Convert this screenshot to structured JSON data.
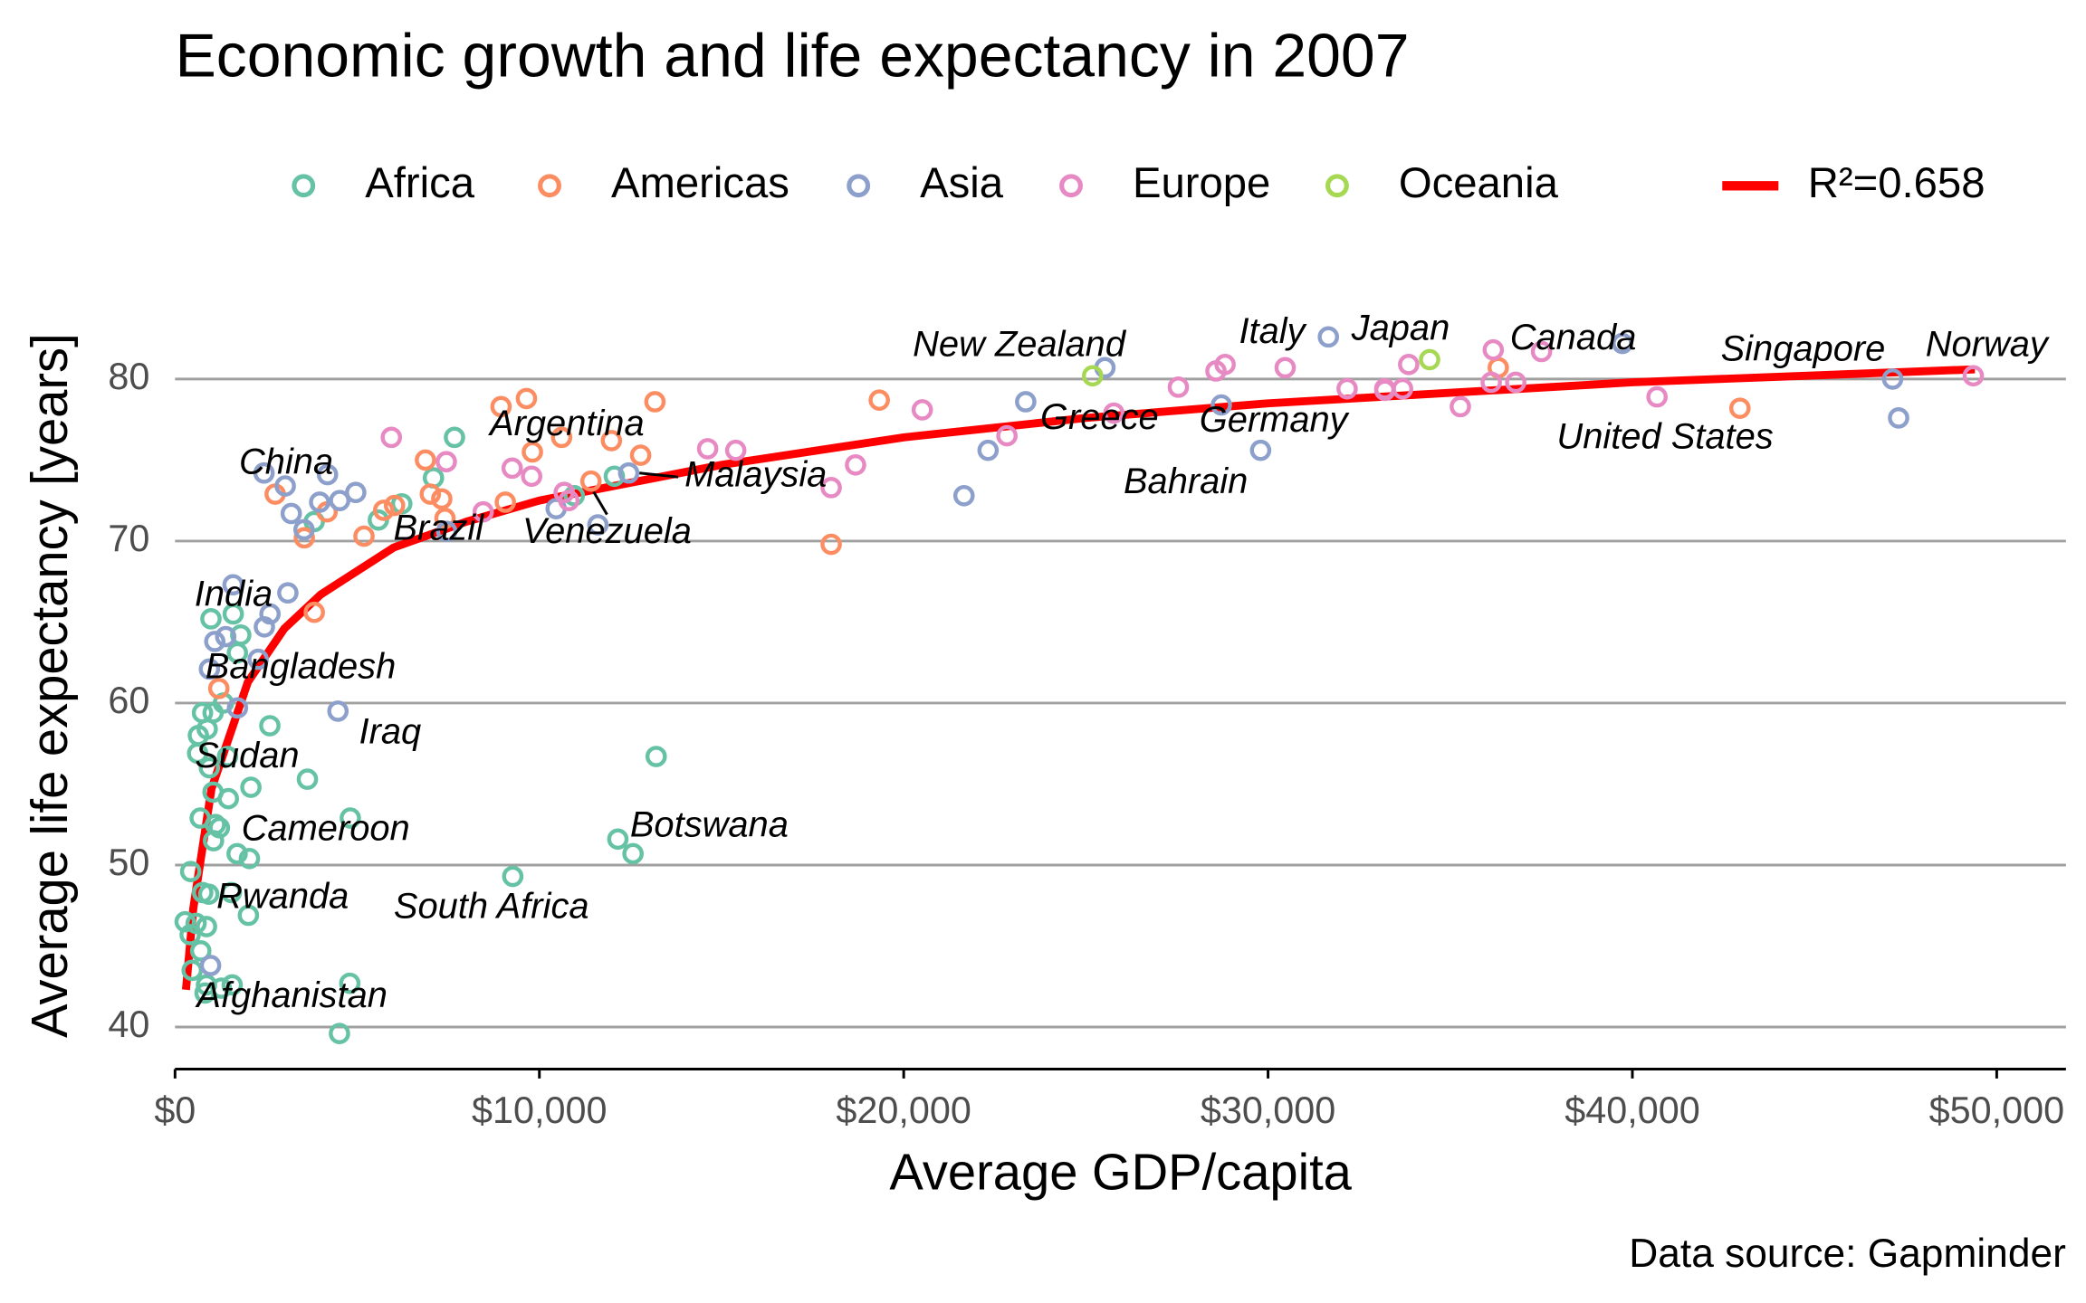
{
  "chart_data": {
    "type": "scatter",
    "title": "Economic growth and life expectancy in 2007",
    "x_label": "Average GDP/capita",
    "y_label": "Average life expectancy [years]",
    "caption": "Data source: Gapminder",
    "xlim": [
      -400,
      51900
    ],
    "ylim": [
      37.4,
      86.9
    ],
    "xticks": [
      {
        "value": 0,
        "label": "$0"
      },
      {
        "value": 10000,
        "label": "$10,000"
      },
      {
        "value": 20000,
        "label": "$20,000"
      },
      {
        "value": 30000,
        "label": "$30,000"
      },
      {
        "value": 40000,
        "label": "$40,000"
      },
      {
        "value": 50000,
        "label": "$50,000"
      }
    ],
    "yticks": [
      40,
      50,
      60,
      70,
      80
    ],
    "grid": true,
    "legend": "top",
    "series": [
      {
        "name": "Africa",
        "color": "#66c2a5",
        "x": [
          6223,
          4797,
          1441,
          12570,
          1217,
          430,
          2042,
          706,
          1704,
          986,
          278,
          3633,
          1545,
          2082,
          5581,
          12154,
          641,
          691,
          13206,
          753,
          1328,
          943,
          579,
          1463,
          1569,
          415,
          12057,
          1045,
          759,
          1043,
          1803,
          10957,
          3820,
          824,
          4811,
          620,
          2014,
          7670,
          863,
          1598,
          1712,
          863,
          926,
          9270,
          2602,
          4513,
          1107,
          883,
          7093,
          1056,
          1271,
          470
        ],
        "y": [
          72.3,
          42.7,
          56.7,
          50.7,
          52.3,
          49.6,
          50.4,
          44.7,
          50.7,
          65.2,
          46.5,
          55.3,
          48.3,
          54.8,
          71.3,
          51.6,
          58.0,
          52.9,
          56.7,
          59.4,
          60.0,
          56.0,
          46.4,
          54.1,
          42.6,
          45.7,
          74.0,
          59.4,
          48.3,
          54.5,
          64.2,
          72.8,
          71.2,
          42.1,
          52.9,
          56.9,
          46.9,
          76.4,
          46.2,
          65.5,
          63.1,
          42.6,
          48.2,
          49.3,
          58.6,
          39.6,
          52.5,
          58.4,
          73.9,
          51.5,
          42.4,
          43.5
        ]
      },
      {
        "name": "Americas",
        "color": "#fc8d62",
        "x": [
          12779,
          3822,
          9066,
          36319,
          13172,
          7007,
          9645,
          8948,
          6025,
          6873,
          5728,
          5186,
          1202,
          3548,
          7321,
          11978,
          2749,
          9809,
          4173,
          7409,
          19329,
          18009,
          42952,
          10611,
          11416
        ],
        "y": [
          75.3,
          65.6,
          72.4,
          80.7,
          78.6,
          72.9,
          78.8,
          78.3,
          72.2,
          75.0,
          71.9,
          70.3,
          60.9,
          70.2,
          72.6,
          76.2,
          72.9,
          75.5,
          71.8,
          71.4,
          78.7,
          69.8,
          78.2,
          76.4,
          73.7
        ]
      },
      {
        "name": "Asia",
        "color": "#8da0cb",
        "x": [
          975,
          29796,
          1391,
          1714,
          4959,
          39725,
          2452,
          3541,
          11606,
          4471,
          25523,
          31656,
          4519,
          1593,
          23348,
          47307,
          10461,
          12452,
          3096,
          944,
          1091,
          22316,
          2606,
          3190,
          21655,
          47143,
          3970,
          4185,
          28718,
          7458,
          2442,
          3025,
          2281
        ],
        "y": [
          43.8,
          75.6,
          64.1,
          59.7,
          73.0,
          82.2,
          64.7,
          70.7,
          71.0,
          59.5,
          80.7,
          82.6,
          72.5,
          67.3,
          78.6,
          77.6,
          72.0,
          74.2,
          66.8,
          62.1,
          63.8,
          75.6,
          65.5,
          71.7,
          72.8,
          80.0,
          72.4,
          74.1,
          78.4,
          70.6,
          74.2,
          73.4,
          62.7
        ]
      },
      {
        "name": "Europe",
        "color": "#e78ac3",
        "x": [
          5937,
          36126,
          33693,
          7446,
          10681,
          14619,
          22833,
          35278,
          33207,
          30470,
          32170,
          27538,
          18009,
          36181,
          40676,
          28570,
          9254,
          36798,
          49357,
          15390,
          20510,
          10808,
          9787,
          18678,
          25768,
          28821,
          33860,
          37506,
          8458,
          33203
        ],
        "y": [
          76.4,
          79.8,
          79.4,
          74.9,
          73.0,
          75.7,
          76.5,
          78.3,
          79.3,
          80.7,
          79.4,
          79.5,
          73.3,
          81.8,
          78.9,
          80.5,
          74.5,
          79.8,
          80.2,
          75.6,
          78.1,
          72.5,
          74.0,
          74.7,
          77.9,
          80.9,
          80.9,
          81.7,
          71.8,
          79.4
        ]
      },
      {
        "name": "Oceania",
        "color": "#a6d854",
        "x": [
          34435,
          25185
        ],
        "y": [
          81.2,
          80.2
        ]
      }
    ],
    "fit": {
      "name": "R²=0.658",
      "color": "#ff0000",
      "x": [
        300,
        500,
        1000,
        2000,
        3000,
        4000,
        6000,
        8000,
        10000,
        15000,
        20000,
        25000,
        30000,
        40000,
        49400
      ],
      "y": [
        42.3,
        47.3,
        54.7,
        61.3,
        64.6,
        66.7,
        69.6,
        71.2,
        72.5,
        74.7,
        76.4,
        77.6,
        78.5,
        79.8,
        80.6
      ]
    },
    "annotations": [
      {
        "label": "Norway",
        "x": 49357,
        "y": 80.2
      },
      {
        "label": "Singapore",
        "x": 47143,
        "y": 80.0
      },
      {
        "label": "United States",
        "x": 42952,
        "y": 78.2
      },
      {
        "label": "Canada",
        "x": 36319,
        "y": 80.7
      },
      {
        "label": "Japan",
        "x": 31656,
        "y": 82.6
      },
      {
        "label": "Italy",
        "x": 28570,
        "y": 80.5
      },
      {
        "label": "Germany",
        "x": 32170,
        "y": 79.4
      },
      {
        "label": "Bahrain",
        "x": 29796,
        "y": 75.6
      },
      {
        "label": "Greece",
        "x": 27538,
        "y": 79.5
      },
      {
        "label": "New Zealand",
        "x": 25185,
        "y": 80.2
      },
      {
        "label": "Argentina",
        "x": 12779,
        "y": 75.3
      },
      {
        "label": "Malaysia",
        "x": 12452,
        "y": 74.2
      },
      {
        "label": "Venezuela",
        "x": 11416,
        "y": 73.7
      },
      {
        "label": "Brazil",
        "x": 9066,
        "y": 72.4
      },
      {
        "label": "China",
        "x": 4959,
        "y": 73.0
      },
      {
        "label": "India",
        "x": 2452,
        "y": 64.7
      },
      {
        "label": "Bangladesh",
        "x": 1391,
        "y": 64.1
      },
      {
        "label": "Iraq",
        "x": 4471,
        "y": 59.5
      },
      {
        "label": "Sudan",
        "x": 2602,
        "y": 58.6
      },
      {
        "label": "Cameroon",
        "x": 2042,
        "y": 50.4
      },
      {
        "label": "Rwanda",
        "x": 863,
        "y": 46.2
      },
      {
        "label": "Afghanistan",
        "x": 975,
        "y": 43.8
      },
      {
        "label": "South Africa",
        "x": 9270,
        "y": 49.3
      },
      {
        "label": "Botswana",
        "x": 12570,
        "y": 50.7
      }
    ]
  }
}
